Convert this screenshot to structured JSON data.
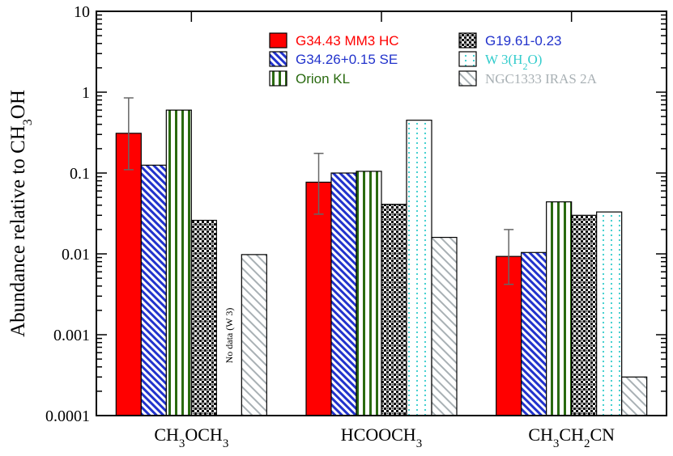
{
  "chart_data": {
    "type": "bar",
    "scale": "log",
    "ylabel_parts": [
      "Abundance relative to CH",
      "3",
      "OH"
    ],
    "ylim": [
      0.0001,
      10
    ],
    "yticks": [
      {
        "value": 0.0001,
        "label": "0.0001"
      },
      {
        "value": 0.001,
        "label": "0.001"
      },
      {
        "value": 0.01,
        "label": "0.01"
      },
      {
        "value": 0.1,
        "label": "0.1"
      },
      {
        "value": 1,
        "label": "1"
      },
      {
        "value": 10,
        "label": "10"
      }
    ],
    "categories": [
      {
        "name": "CH3OCH3",
        "parts": [
          [
            "CH",
            false
          ],
          [
            "3",
            true
          ],
          [
            "OCH",
            false
          ],
          [
            "3",
            true
          ]
        ]
      },
      {
        "name": "HCOOCH3",
        "parts": [
          [
            "HCOOCH",
            false
          ],
          [
            "3",
            true
          ]
        ]
      },
      {
        "name": "CH3CH2CN",
        "parts": [
          [
            "CH",
            false
          ],
          [
            "3",
            true
          ],
          [
            "CH",
            false
          ],
          [
            "2",
            true
          ],
          [
            "CN",
            false
          ]
        ]
      }
    ],
    "series": [
      {
        "name": "G34.43 MM3 HC",
        "color": "#ff0000",
        "pattern": "solid",
        "values": [
          0.31,
          0.077,
          0.0093
        ],
        "err_lo": [
          0.11,
          0.031,
          0.0042
        ],
        "err_hi": [
          0.85,
          0.175,
          0.02
        ]
      },
      {
        "name": "G34.26+0.15 SE",
        "color": "#2233cc",
        "pattern": "diag-dense",
        "values": [
          0.125,
          0.1,
          0.0104
        ]
      },
      {
        "name": "Orion KL",
        "color": "#2a6a10",
        "pattern": "vstripes",
        "values": [
          0.6,
          0.105,
          0.044
        ]
      },
      {
        "name": "G19.61-0.23",
        "color": "#2233cc",
        "pattern": "checker",
        "values": [
          0.026,
          0.041,
          0.03
        ]
      },
      {
        "name": "W 3(H2O)",
        "color": "#33cccc",
        "pattern": "dots",
        "name_parts": [
          [
            "W 3(H",
            false
          ],
          [
            "2",
            true
          ],
          [
            "O)",
            false
          ]
        ],
        "values": [
          null,
          0.45,
          0.033
        ]
      },
      {
        "name": "NGC1333 IRAS 2A",
        "color": "#a8b0b4",
        "pattern": "diag-sparse",
        "values": [
          0.0098,
          0.016,
          0.0003
        ]
      }
    ],
    "annotation": "No data (W 3)"
  }
}
